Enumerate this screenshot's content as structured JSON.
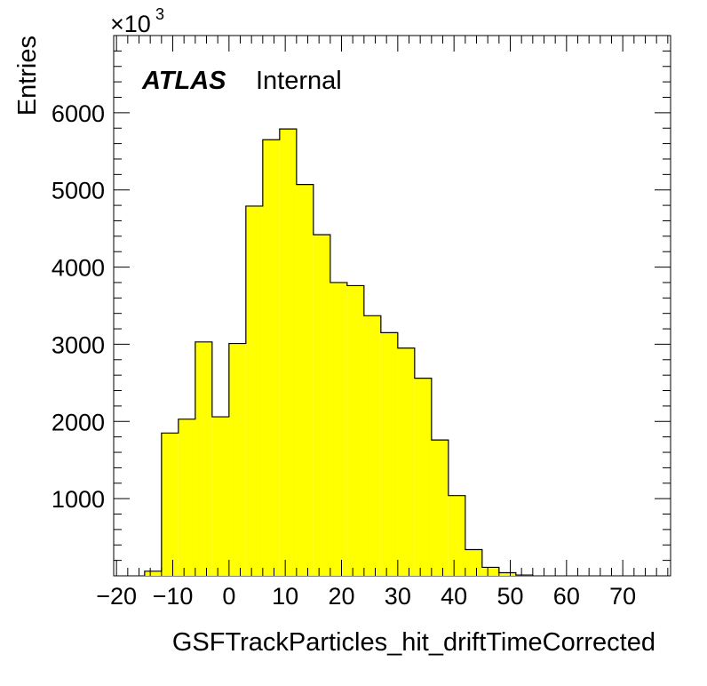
{
  "chart_data": {
    "type": "histogram",
    "title": "",
    "label_main": "ATLAS",
    "label_sub": "Internal",
    "xlabel": "GSFTrackParticles_hit_driftTimeCorrected",
    "ylabel": "Entries",
    "y_multiplier_base": "×10",
    "y_multiplier_exp": "3",
    "xlim": [
      -20.5,
      78.5
    ],
    "ylim": [
      0,
      7000
    ],
    "x_ticks": [
      -20,
      -10,
      0,
      10,
      20,
      30,
      40,
      50,
      60,
      70
    ],
    "x_tick_labels": [
      "−20",
      "−10",
      "0",
      "10",
      "20",
      "30",
      "40",
      "50",
      "60",
      "70"
    ],
    "y_ticks": [
      1000,
      2000,
      3000,
      4000,
      5000,
      6000
    ],
    "y_tick_labels": [
      "1000",
      "2000",
      "3000",
      "4000",
      "5000",
      "6000"
    ],
    "bin_edges": [
      -15,
      -12,
      -9,
      -6,
      -3,
      0,
      3,
      6,
      9,
      12,
      15,
      18,
      21,
      24,
      27,
      30,
      33,
      36,
      39,
      42,
      45,
      48,
      51,
      54
    ],
    "values": [
      60,
      1850,
      2030,
      3030,
      2060,
      3010,
      4790,
      5650,
      5790,
      5070,
      4420,
      3800,
      3760,
      3370,
      3150,
      2950,
      2560,
      1760,
      1040,
      340,
      110,
      40,
      10
    ],
    "fill_color": "#ffff00",
    "line_color": "#000000",
    "grid": false
  }
}
